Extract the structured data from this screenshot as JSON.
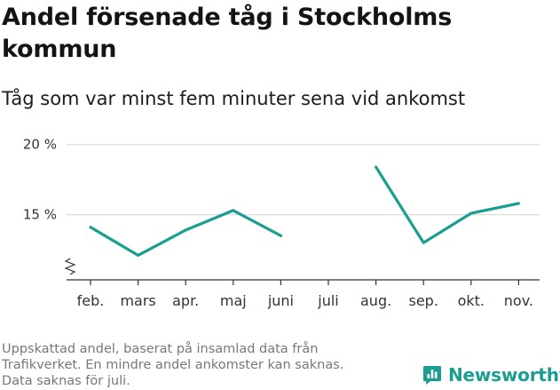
{
  "header": {
    "title": "Andel försenade tåg i Stockholms kommun",
    "subtitle": "Tåg som var minst fem minuter sena vid ankomst"
  },
  "footer": {
    "note_lines": [
      "Uppskattad andel, baserat på insamlad data från",
      "Trafikverket. En mindre andel ankomster kan saknas.",
      "Data saknas för juli."
    ],
    "brand": "Newsworthy"
  },
  "colors": {
    "line": "#1a9e90",
    "grid": "#dddddd",
    "axis": "#333333",
    "brand": "#1b9e92"
  },
  "chart_data": {
    "type": "line",
    "categories": [
      "feb.",
      "mars",
      "apr.",
      "maj",
      "juni",
      "juli",
      "aug.",
      "sep.",
      "okt.",
      "nov."
    ],
    "series": [
      {
        "values": [
          14.1,
          12.1,
          13.9,
          15.3,
          13.5,
          null,
          18.4,
          13.0,
          15.1,
          15.8
        ]
      }
    ],
    "yticks": [
      15,
      20
    ],
    "ytick_labels": [
      "15 %",
      "20 %"
    ],
    "ylim": [
      10.35,
      20.3
    ],
    "y_axis_break": true,
    "grid": true,
    "legend": "none"
  }
}
